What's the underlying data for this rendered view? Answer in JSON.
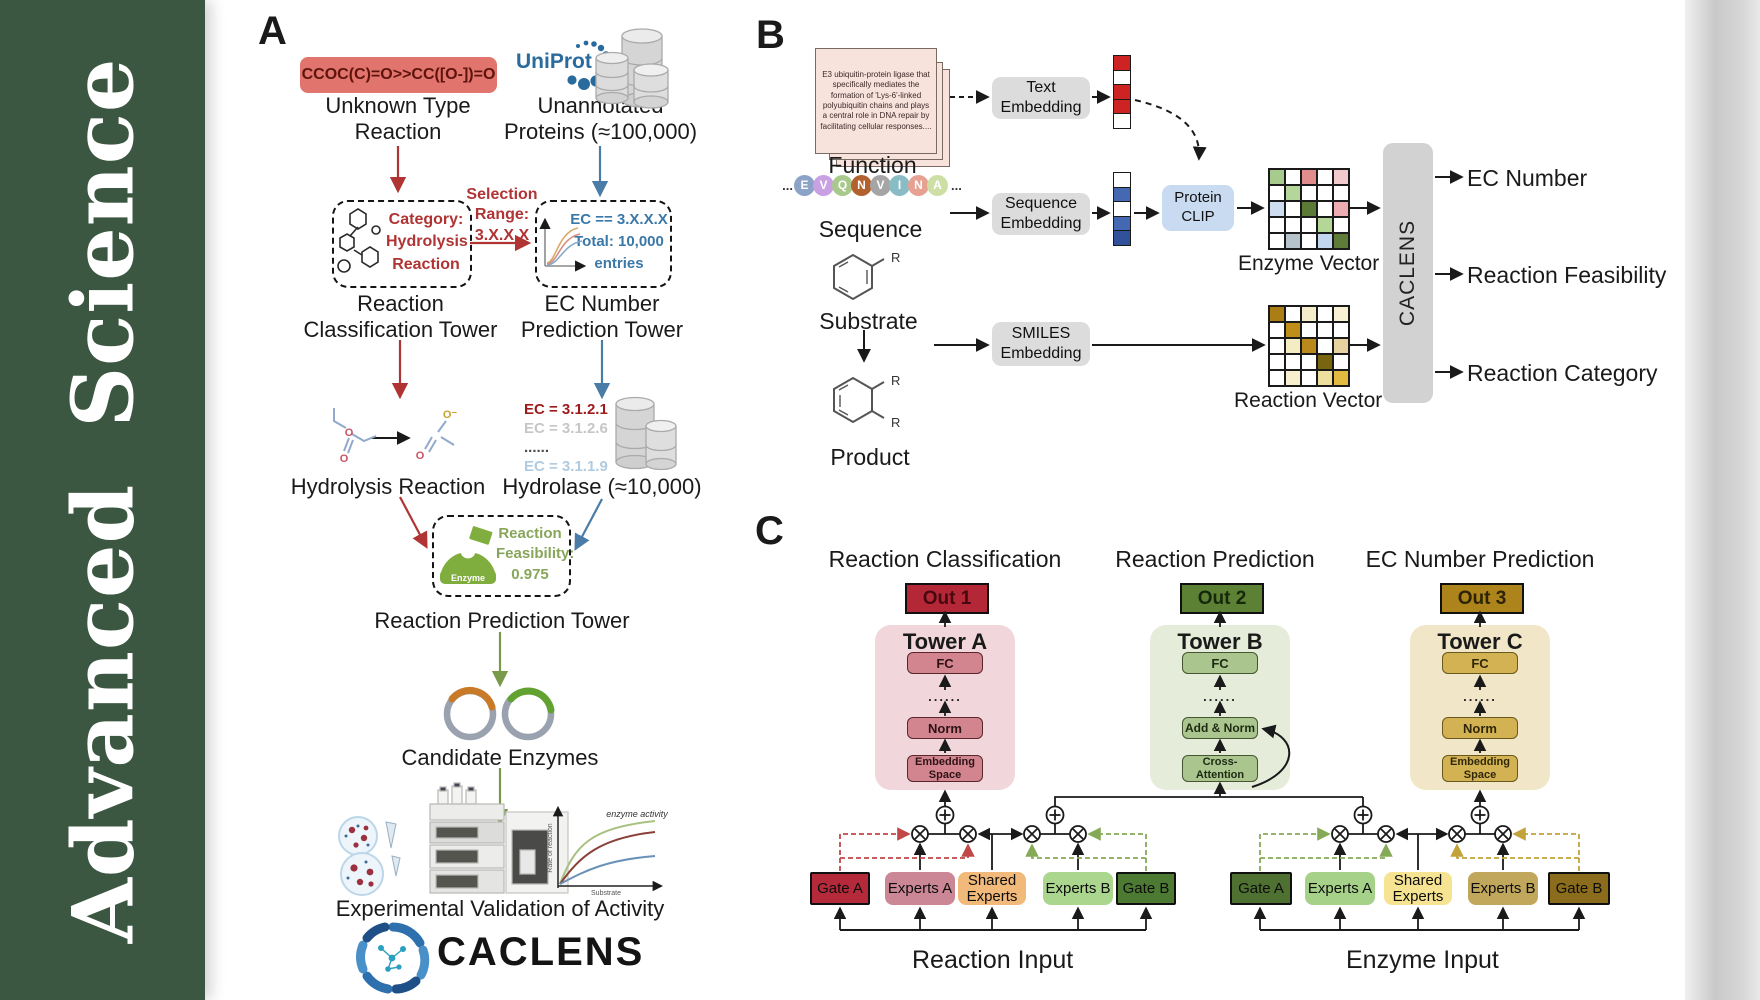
{
  "sidebar": {
    "journal": "Advanced Science"
  },
  "palette": {
    "sidebar_green": "#3b5741",
    "red_accent": "#b03434",
    "blue_accent": "#4a7ca8",
    "olive_green": "#7a9a4a",
    "uniprot_blue": "#2a6b9e",
    "smiles_box_bg": "#e1746c",
    "gray_box": "#dcdcdc",
    "clip_blue": "#c9dbf1"
  },
  "panelA": {
    "label": "A",
    "smiles": "CCOC(C)=O>>CC([O-])=O",
    "unknown": [
      "Unknown Type",
      "Reaction"
    ],
    "uniprot": "UniProt",
    "unannotated": [
      "Unannotated",
      "Proteins (≈100,000)"
    ],
    "selection": [
      "Selection",
      "Range:",
      "3.X.X.X"
    ],
    "category_box": [
      "Category:",
      "Hydrolysis",
      "Reaction"
    ],
    "ec_box": [
      "EC == 3.X.X.X",
      "Total: 10,000",
      "entries"
    ],
    "tower1": [
      "Reaction",
      "Classification Tower"
    ],
    "tower2": [
      "EC Number",
      "Prediction Tower"
    ],
    "ec_list": [
      {
        "text": "EC = 3.1.2.1",
        "color": "#9e1b1b"
      },
      {
        "text": "EC = 3.1.2.6",
        "color": "#c6c6c6"
      },
      {
        "text": "......",
        "color": "#4a4a4a"
      },
      {
        "text": "EC = 3.1.1.9",
        "color": "#afcbe0"
      }
    ],
    "hydrolysis": "Hydrolysis Reaction",
    "hydrolase": "Hydrolase (≈10,000)",
    "enzyme_icon": "Enzyme",
    "feasibility": [
      "Reaction",
      "Feasibility:",
      "0.975"
    ],
    "tower3": "Reaction Prediction Tower",
    "candidates": "Candidate Enzymes",
    "plot": {
      "annotation": "enzyme activity",
      "ylabel": "Rate of reaction",
      "xlabel": "Substrate"
    },
    "validation": "Experimental Validation of Activity",
    "logo": "CACLENS"
  },
  "panelB": {
    "label": "B",
    "card_text": "E3 ubiquitin-protein ligase that specifically mediates the formation of 'Lys-6'-linked polyubiquitin chains and plays a central role in DNA repair by facilitating cellular responses....",
    "function_label": "Function",
    "ellipsis": "...",
    "residues": [
      {
        "letter": "E",
        "color": "#8ba3c6"
      },
      {
        "letter": "V",
        "color": "#c9a1e2"
      },
      {
        "letter": "Q",
        "color": "#a9c98c"
      },
      {
        "letter": "N",
        "color": "#b2612e"
      },
      {
        "letter": "V",
        "color": "#a5a5a5"
      },
      {
        "letter": "I",
        "color": "#8abcc6"
      },
      {
        "letter": "N",
        "color": "#e6a193"
      },
      {
        "letter": "A",
        "color": "#cedfa6"
      }
    ],
    "sequence_label": "Sequence",
    "substrate_label": "Substrate",
    "product_label": "Product",
    "r_label": "R",
    "text_embedding": [
      "Text",
      "Embedding"
    ],
    "sequence_embedding": [
      "Sequence",
      "Embedding"
    ],
    "smiles_embedding": [
      "SMILES",
      "Embedding"
    ],
    "protein_clip": [
      "Protein",
      "CLIP"
    ],
    "text_vector": [
      "#ce2323",
      "#ffffff",
      "#ce2323",
      "#ce2323",
      "#ffffff"
    ],
    "seq_vector": [
      "#ffffff",
      "#4468b2",
      "#ffffff",
      "#4468b2",
      "#32519b"
    ],
    "enzyme_matrix": [
      [
        "#a6cb8d",
        "#ffffff",
        "#e28d8d",
        "#ffffff",
        "#f3cbce"
      ],
      [
        "#ffffff",
        "#b4d69b",
        "#ffffff",
        "#ffffff",
        "#ffffff"
      ],
      [
        "#cddcee",
        "#ffffff",
        "#5b7a36",
        "#ffffff",
        "#eeadb3"
      ],
      [
        "#ffffff",
        "#ffffff",
        "#ffffff",
        "#b4d795",
        "#ffffff"
      ],
      [
        "#ffffff",
        "#b7c3cb",
        "#ffffff",
        "#c3d7ee",
        "#5e7b3a"
      ]
    ],
    "reaction_matrix": [
      [
        "#aa7e15",
        "#ffffff",
        "#f4ecca",
        "#ffffff",
        "#f8f1d4"
      ],
      [
        "#ffffff",
        "#bf8e18",
        "#ffffff",
        "#ffffff",
        "#ffffff"
      ],
      [
        "#ffffff",
        "#f4ecc2",
        "#b9891b",
        "#ffffff",
        "#e7d3a0"
      ],
      [
        "#ffffff",
        "#ffffff",
        "#ffffff",
        "#79640f",
        "#ffffff"
      ],
      [
        "#ffffff",
        "#f7efcd",
        "#ffffff",
        "#efdf9e",
        "#e3ba40"
      ]
    ],
    "enzyme_vector_label": "Enzyme Vector",
    "reaction_vector_label": "Reaction Vector",
    "caclens": "CACLENS",
    "outputs": [
      "EC Number",
      "Reaction Feasibility",
      "Reaction Category"
    ]
  },
  "panelC": {
    "label": "C",
    "sections": [
      {
        "title": "Reaction Classification",
        "out": "Out 1",
        "tower": "Tower A",
        "fc": "FC",
        "dots": "......",
        "mid": "Norm",
        "bottom": [
          "Embedding",
          "Space"
        ]
      },
      {
        "title": "Reaction Prediction",
        "out": "Out 2",
        "tower": "Tower B",
        "fc": "FC",
        "dots": "......",
        "mid": "Add & Norm",
        "bottom": [
          "Cross-",
          "Attention"
        ]
      },
      {
        "title": "EC Number Prediction",
        "out": "Out 3",
        "tower": "Tower C",
        "fc": "FC",
        "dots": "......",
        "mid": "Norm",
        "bottom": [
          "Embedding",
          "Space"
        ]
      }
    ],
    "moe": {
      "left": {
        "input": "Reaction Input",
        "boxes": [
          {
            "label": "Gate A",
            "color": "#b52a3a"
          },
          {
            "label": "Experts A",
            "color": "#cb8795"
          },
          {
            "label": "Shared Experts",
            "color": "#f2ba7a"
          },
          {
            "label": "Experts B",
            "color": "#abd68e"
          },
          {
            "label": "Gate B",
            "color": "#4d7a33"
          }
        ]
      },
      "right": {
        "input": "Enzyme Input",
        "boxes": [
          {
            "label": "Gate A",
            "color": "#4e7030"
          },
          {
            "label": "Experts A",
            "color": "#a6d189"
          },
          {
            "label": "Shared Experts",
            "color": "#f6e492"
          },
          {
            "label": "Experts B",
            "color": "#c0a75c"
          },
          {
            "label": "Gate B",
            "color": "#8a6c1c"
          }
        ]
      }
    }
  }
}
